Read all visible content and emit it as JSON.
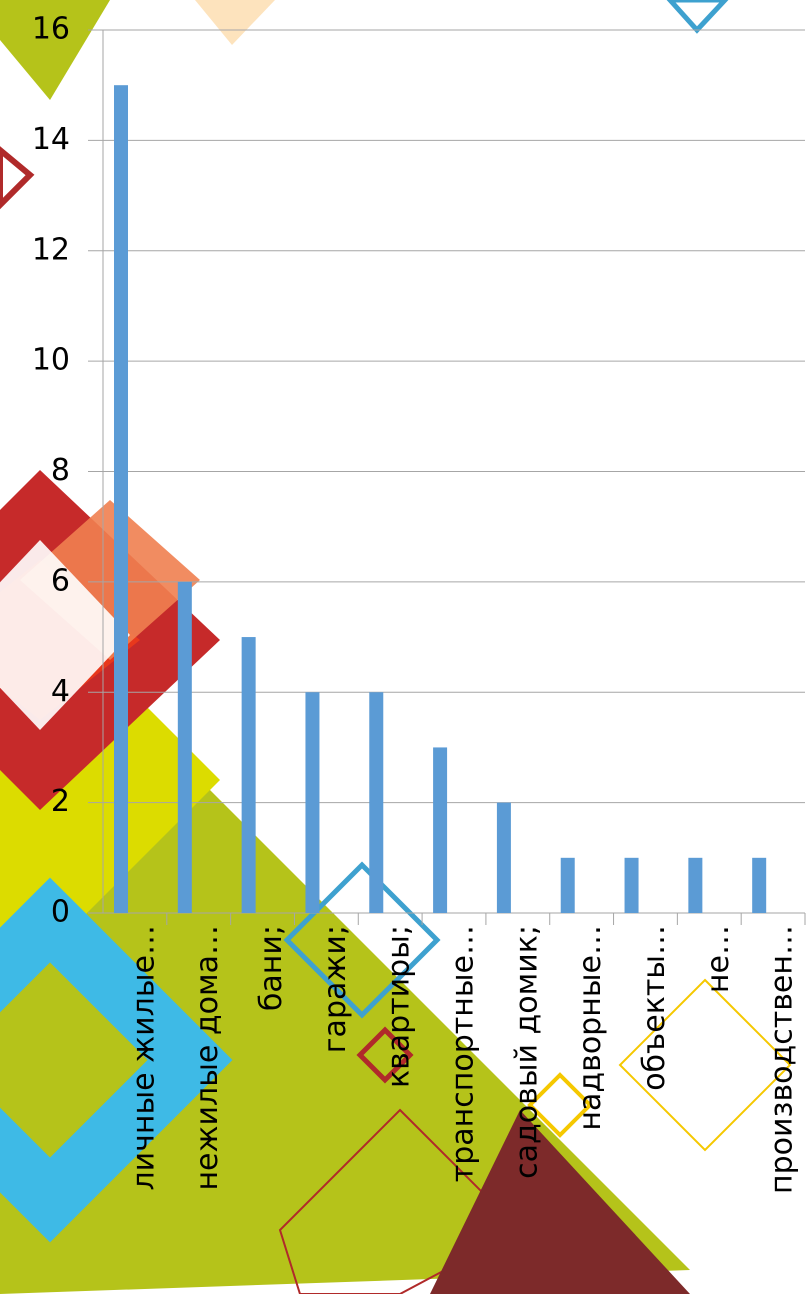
{
  "chart_data": {
    "type": "bar",
    "categories": [
      "личные жилые…",
      "нежилые дома…",
      "бани;",
      "гаражи;",
      "квартиры;",
      "транспортные…",
      "садовый домик;",
      "надворные…",
      "объекты…",
      "не…",
      "производствен…"
    ],
    "values": [
      15,
      6,
      5,
      4,
      4,
      3,
      2,
      1,
      1,
      1,
      1
    ],
    "color": "#5b9bd5",
    "ylim": [
      0,
      16
    ],
    "yticks": [
      0,
      2,
      4,
      6,
      8,
      10,
      12,
      14,
      16
    ],
    "grid": true
  }
}
